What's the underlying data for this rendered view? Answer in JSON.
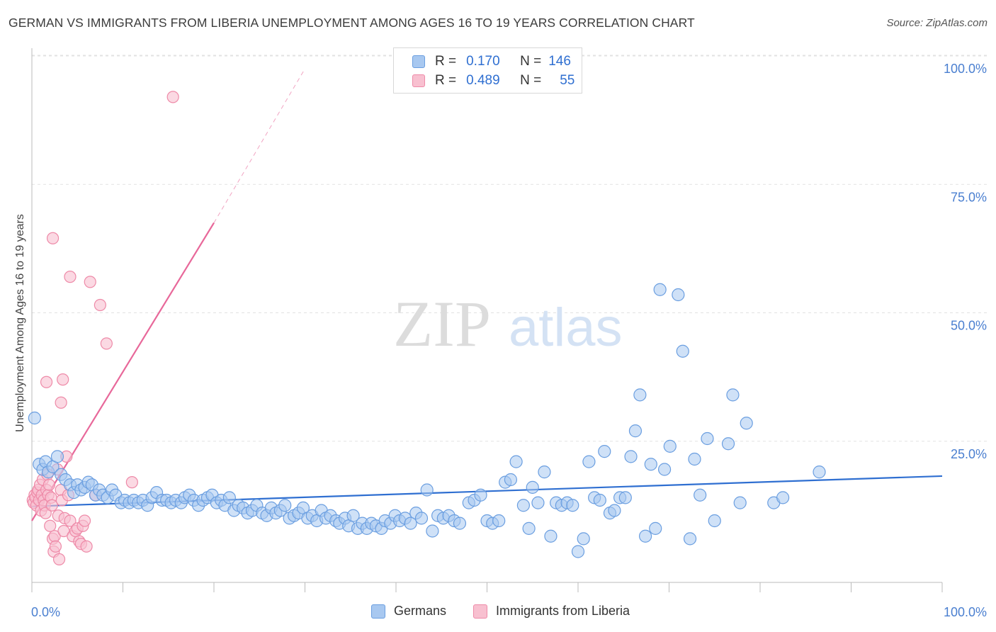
{
  "title": "GERMAN VS IMMIGRANTS FROM LIBERIA UNEMPLOYMENT AMONG AGES 16 TO 19 YEARS CORRELATION CHART",
  "source": "Source: ZipAtlas.com",
  "watermark": {
    "zip": "ZIP",
    "atlas": "atlas"
  },
  "legend_top": {
    "germans": {
      "r_label": "R =",
      "r_value": "0.170",
      "n_label": "N =",
      "n_value": "146"
    },
    "liberia": {
      "r_label": "R =",
      "r_value": "0.489",
      "n_label": "N =",
      "n_value": "55"
    }
  },
  "legend_bottom": {
    "germans": "Germans",
    "liberia": "Immigrants from Liberia"
  },
  "colors": {
    "germans_fill": "#a8c8f0",
    "germans_stroke": "#6a9ee0",
    "germans_line": "#2f6fd1",
    "liberia_fill": "#f8c0d0",
    "liberia_stroke": "#ee8aa8",
    "liberia_line": "#e8689a",
    "tick_label": "#4a7fd0",
    "grid": "#e2e2e2"
  },
  "chart_data": {
    "type": "scatter",
    "title": "GERMAN VS IMMIGRANTS FROM LIBERIA UNEMPLOYMENT AMONG AGES 16 TO 19 YEARS CORRELATION CHART",
    "xlabel": "",
    "ylabel": "Unemployment Among Ages 16 to 19 years",
    "xlim": [
      0,
      100
    ],
    "ylim": [
      0,
      100
    ],
    "x_tick_labels": [
      "0.0%",
      "100.0%"
    ],
    "y_ticks": [
      25,
      50,
      75,
      100
    ],
    "y_tick_labels": [
      "25.0%",
      "50.0%",
      "75.0%",
      "100.0%"
    ],
    "grid": true,
    "series": [
      {
        "name": "Germans",
        "r": 0.17,
        "n": 146,
        "trend": {
          "x": [
            0,
            100
          ],
          "y": [
            14.8,
            20.7
          ]
        },
        "points": [
          [
            0.3,
            32
          ],
          [
            0.8,
            23
          ],
          [
            1.2,
            22
          ],
          [
            1.5,
            23.5
          ],
          [
            1.8,
            21.5
          ],
          [
            2.3,
            22.5
          ],
          [
            2.8,
            24.5
          ],
          [
            3.2,
            21
          ],
          [
            3.7,
            20
          ],
          [
            4.2,
            19
          ],
          [
            4.6,
            17.5
          ],
          [
            5,
            19
          ],
          [
            5.4,
            18
          ],
          [
            5.8,
            18.5
          ],
          [
            6.2,
            19.5
          ],
          [
            6.6,
            19
          ],
          [
            7,
            17
          ],
          [
            7.4,
            18
          ],
          [
            7.8,
            17
          ],
          [
            8.3,
            16.5
          ],
          [
            8.8,
            18
          ],
          [
            9.2,
            17
          ],
          [
            9.8,
            15.5
          ],
          [
            10.2,
            16
          ],
          [
            10.7,
            15.5
          ],
          [
            11.2,
            16
          ],
          [
            11.7,
            15.5
          ],
          [
            12.2,
            16
          ],
          [
            12.7,
            15
          ],
          [
            13.2,
            16.5
          ],
          [
            13.7,
            17.5
          ],
          [
            14.3,
            16
          ],
          [
            14.8,
            16
          ],
          [
            15.3,
            15.5
          ],
          [
            15.8,
            16
          ],
          [
            16.4,
            15.5
          ],
          [
            16.8,
            16.5
          ],
          [
            17.3,
            17
          ],
          [
            17.8,
            16
          ],
          [
            18.3,
            15
          ],
          [
            18.8,
            16
          ],
          [
            19.3,
            16.5
          ],
          [
            19.8,
            17
          ],
          [
            20.3,
            15.5
          ],
          [
            20.8,
            16
          ],
          [
            21.2,
            15
          ],
          [
            21.7,
            16.5
          ],
          [
            22.2,
            14
          ],
          [
            22.7,
            15
          ],
          [
            23.2,
            14.5
          ],
          [
            23.7,
            13.5
          ],
          [
            24.2,
            14
          ],
          [
            24.7,
            15
          ],
          [
            25.3,
            13.5
          ],
          [
            25.8,
            13
          ],
          [
            26.3,
            14.5
          ],
          [
            26.8,
            13.5
          ],
          [
            27.3,
            14
          ],
          [
            27.8,
            15
          ],
          [
            28.3,
            12.5
          ],
          [
            28.8,
            13
          ],
          [
            29.3,
            13.5
          ],
          [
            29.8,
            14.5
          ],
          [
            30.3,
            12.5
          ],
          [
            30.8,
            13
          ],
          [
            31.3,
            12
          ],
          [
            31.8,
            14
          ],
          [
            32.3,
            12.5
          ],
          [
            32.8,
            13
          ],
          [
            33.4,
            12
          ],
          [
            33.8,
            11.5
          ],
          [
            34.4,
            12.5
          ],
          [
            34.8,
            11
          ],
          [
            35.3,
            13
          ],
          [
            35.8,
            10.5
          ],
          [
            36.3,
            11.5
          ],
          [
            36.8,
            10.5
          ],
          [
            37.3,
            11.5
          ],
          [
            37.8,
            11
          ],
          [
            38.4,
            10.5
          ],
          [
            38.8,
            12
          ],
          [
            39.4,
            11.5
          ],
          [
            39.9,
            13
          ],
          [
            40.4,
            12
          ],
          [
            41,
            12.5
          ],
          [
            41.6,
            11.5
          ],
          [
            42.2,
            13.5
          ],
          [
            42.8,
            12.5
          ],
          [
            43.4,
            18
          ],
          [
            44,
            10
          ],
          [
            44.6,
            13
          ],
          [
            45.2,
            12.5
          ],
          [
            45.8,
            13
          ],
          [
            46.4,
            12
          ],
          [
            47,
            11.5
          ],
          [
            48,
            15.5
          ],
          [
            48.6,
            16
          ],
          [
            49.3,
            17
          ],
          [
            50,
            12
          ],
          [
            50.6,
            11.5
          ],
          [
            51.3,
            12
          ],
          [
            52,
            19.5
          ],
          [
            52.6,
            20
          ],
          [
            53.2,
            23.5
          ],
          [
            54,
            15
          ],
          [
            54.6,
            10.5
          ],
          [
            55,
            18.5
          ],
          [
            55.6,
            15.5
          ],
          [
            56.3,
            21.5
          ],
          [
            57,
            9
          ],
          [
            57.6,
            15.5
          ],
          [
            58.2,
            15
          ],
          [
            58.8,
            15.5
          ],
          [
            59.4,
            15
          ],
          [
            60,
            6
          ],
          [
            60.6,
            8.5
          ],
          [
            61.2,
            23.5
          ],
          [
            61.8,
            16.5
          ],
          [
            62.4,
            16
          ],
          [
            62.9,
            25.5
          ],
          [
            63.5,
            13.5
          ],
          [
            64,
            14
          ],
          [
            64.6,
            16.5
          ],
          [
            65.2,
            16.5
          ],
          [
            65.8,
            24.5
          ],
          [
            66.3,
            29.5
          ],
          [
            66.8,
            36.5
          ],
          [
            67.4,
            9
          ],
          [
            68,
            23
          ],
          [
            68.5,
            10.5
          ],
          [
            69,
            57
          ],
          [
            69.5,
            22
          ],
          [
            70.1,
            26.5
          ],
          [
            71,
            56
          ],
          [
            71.5,
            45
          ],
          [
            72.3,
            8.5
          ],
          [
            72.8,
            24
          ],
          [
            73.4,
            17
          ],
          [
            74.2,
            28
          ],
          [
            75,
            12
          ],
          [
            76.5,
            27
          ],
          [
            77,
            36.5
          ],
          [
            78.5,
            31
          ],
          [
            77.8,
            15.5
          ],
          [
            86.5,
            21.5
          ],
          [
            81.5,
            15.5
          ],
          [
            82.5,
            16.5
          ]
        ]
      },
      {
        "name": "Immigrants from Liberia",
        "r": 0.489,
        "n": 55,
        "trend": {
          "x": [
            0,
            20
          ],
          "y": [
            12,
            70
          ]
        },
        "trend_dashed": {
          "x": [
            20,
            30
          ],
          "y": [
            70,
            100
          ]
        },
        "points": [
          [
            0.1,
            16
          ],
          [
            0.2,
            15.5
          ],
          [
            0.3,
            17
          ],
          [
            0.4,
            16.5
          ],
          [
            0.5,
            15
          ],
          [
            0.6,
            17.5
          ],
          [
            0.7,
            18
          ],
          [
            0.8,
            16
          ],
          [
            0.9,
            19
          ],
          [
            1,
            14
          ],
          [
            1.1,
            17
          ],
          [
            1.2,
            20
          ],
          [
            1.3,
            16
          ],
          [
            1.4,
            15
          ],
          [
            1.5,
            13.5
          ],
          [
            1.6,
            18
          ],
          [
            1.7,
            21
          ],
          [
            1.8,
            17
          ],
          [
            1.9,
            19
          ],
          [
            2,
            11
          ],
          [
            2.1,
            16.5
          ],
          [
            2.2,
            15
          ],
          [
            2.3,
            8.5
          ],
          [
            2.4,
            6
          ],
          [
            2.5,
            9
          ],
          [
            2.6,
            7
          ],
          [
            2.8,
            22
          ],
          [
            2.9,
            13
          ],
          [
            3,
            4.5
          ],
          [
            3.2,
            18
          ],
          [
            3.3,
            16
          ],
          [
            3.5,
            10
          ],
          [
            3.6,
            12.5
          ],
          [
            3.8,
            24.5
          ],
          [
            4,
            17
          ],
          [
            4.2,
            12
          ],
          [
            4.5,
            9
          ],
          [
            4.8,
            10
          ],
          [
            5,
            10.5
          ],
          [
            5.2,
            8
          ],
          [
            5.4,
            7.5
          ],
          [
            5.6,
            11
          ],
          [
            6,
            7
          ],
          [
            7,
            17
          ],
          [
            1.6,
            39
          ],
          [
            3.4,
            39.5
          ],
          [
            2.3,
            67
          ],
          [
            4.2,
            59.5
          ],
          [
            6.4,
            58.5
          ],
          [
            7.5,
            54
          ],
          [
            8.2,
            46.5
          ],
          [
            11,
            19.5
          ],
          [
            15.5,
            94.5
          ],
          [
            3.2,
            35
          ],
          [
            5.8,
            12
          ]
        ]
      }
    ]
  }
}
